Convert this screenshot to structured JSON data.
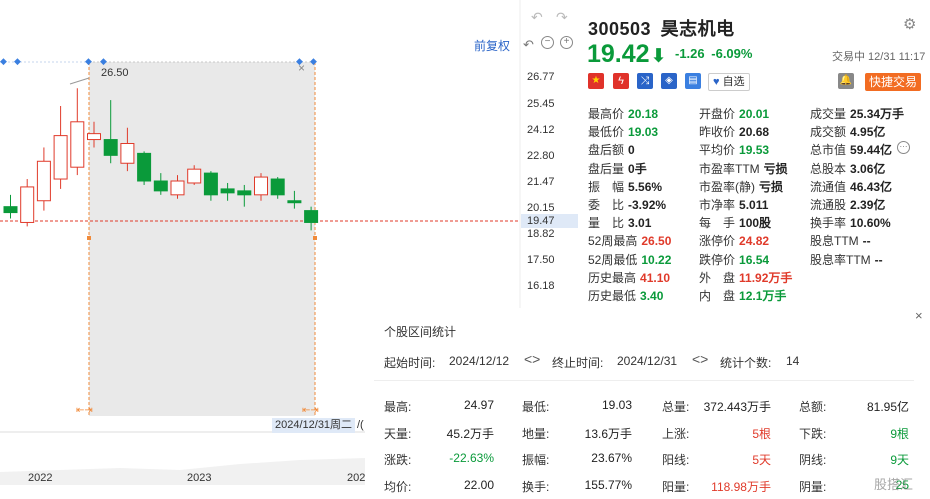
{
  "chart": {
    "y_ticks": [
      "26.77",
      "25.45",
      "24.12",
      "22.80",
      "21.47",
      "20.15",
      "18.82",
      "17.50",
      "16.18"
    ],
    "current_price_marker": "19.47",
    "peak_label": "26.50",
    "toolbar_label": "前复权",
    "date_tooltip": "2024/12/31周二",
    "date_tooltip_suffix": "/(",
    "timeline_years": [
      "2022",
      "2023",
      "202"
    ],
    "candles": [
      {
        "o": 20.2,
        "c": 19.9,
        "h": 20.8,
        "l": 19.6
      },
      {
        "o": 19.4,
        "c": 21.2,
        "h": 21.6,
        "l": 19.2
      },
      {
        "o": 20.5,
        "c": 22.5,
        "h": 23.2,
        "l": 20.0
      },
      {
        "o": 21.6,
        "c": 23.8,
        "h": 25.3,
        "l": 21.1
      },
      {
        "o": 22.2,
        "c": 24.5,
        "h": 26.2,
        "l": 21.8
      },
      {
        "o": 23.6,
        "c": 23.9,
        "h": 24.5,
        "l": 23.2
      },
      {
        "o": 23.6,
        "c": 22.8,
        "h": 25.6,
        "l": 22.4
      },
      {
        "o": 22.4,
        "c": 23.4,
        "h": 24.2,
        "l": 22.0
      },
      {
        "o": 22.9,
        "c": 21.5,
        "h": 23.0,
        "l": 21.3
      },
      {
        "o": 21.5,
        "c": 21.0,
        "h": 21.9,
        "l": 20.8
      },
      {
        "o": 20.8,
        "c": 21.5,
        "h": 21.8,
        "l": 20.6
      },
      {
        "o": 21.4,
        "c": 22.1,
        "h": 22.3,
        "l": 21.3
      },
      {
        "o": 21.9,
        "c": 20.8,
        "h": 22.0,
        "l": 20.5
      },
      {
        "o": 21.1,
        "c": 20.9,
        "h": 21.4,
        "l": 20.5
      },
      {
        "o": 21.0,
        "c": 20.8,
        "h": 21.3,
        "l": 20.2
      },
      {
        "o": 20.8,
        "c": 21.7,
        "h": 21.9,
        "l": 20.5
      },
      {
        "o": 21.6,
        "c": 20.8,
        "h": 21.7,
        "l": 20.6
      },
      {
        "o": 20.5,
        "c": 20.4,
        "h": 21.0,
        "l": 20.1
      },
      {
        "o": 20.0,
        "c": 19.4,
        "h": 20.2,
        "l": 19.0
      }
    ]
  },
  "header": {
    "code": "300503",
    "name": "昊志机电",
    "price": "19.42",
    "change": "-1.26",
    "change_pct": "-6.09%",
    "trade_time": "交易中 12/31 11:17",
    "watchlist_label": "自选",
    "trade_button": "快捷交易"
  },
  "quote": {
    "col1": [
      {
        "k": "最高价",
        "v": "20.18",
        "c": "green"
      },
      {
        "k": "最低价",
        "v": "19.03",
        "c": "green"
      },
      {
        "k": "盘后额",
        "v": "0",
        "c": "blk"
      },
      {
        "k": "盘后量",
        "v": "0手",
        "c": "blk"
      },
      {
        "k": "振　幅",
        "v": "5.56%",
        "c": "blk"
      },
      {
        "k": "委　比",
        "v": "-3.92%",
        "c": "blk"
      },
      {
        "k": "量　比",
        "v": "3.01",
        "c": "blk"
      },
      {
        "k": "52周最高",
        "v": "26.50",
        "c": "red"
      },
      {
        "k": "52周最低",
        "v": "10.22",
        "c": "green"
      },
      {
        "k": "历史最高",
        "v": "41.10",
        "c": "red"
      },
      {
        "k": "历史最低",
        "v": "3.40",
        "c": "green"
      }
    ],
    "col2": [
      {
        "k": "开盘价",
        "v": "20.01",
        "c": "green"
      },
      {
        "k": "昨收价",
        "v": "20.68",
        "c": "blk"
      },
      {
        "k": "平均价",
        "v": "19.53",
        "c": "green"
      },
      {
        "k": "市盈率TTM",
        "v": "亏损",
        "c": "blk"
      },
      {
        "k": "市盈率(静)",
        "v": "亏损",
        "c": "blk"
      },
      {
        "k": "市净率",
        "v": "5.011",
        "c": "blk"
      },
      {
        "k": "每　手",
        "v": "100股",
        "c": "blk"
      },
      {
        "k": "涨停价",
        "v": "24.82",
        "c": "red"
      },
      {
        "k": "跌停价",
        "v": "16.54",
        "c": "green"
      },
      {
        "k": "外　盘",
        "v": "11.92万手",
        "c": "red"
      },
      {
        "k": "内　盘",
        "v": "12.1万手",
        "c": "green"
      }
    ],
    "col3": [
      {
        "k": "成交量",
        "v": "25.34万手",
        "c": "blk"
      },
      {
        "k": "成交额",
        "v": "4.95亿",
        "c": "blk"
      },
      {
        "k": "总市值",
        "v": "59.44亿",
        "c": "blk"
      },
      {
        "k": "总股本",
        "v": "3.06亿",
        "c": "blk"
      },
      {
        "k": "流通值",
        "v": "46.43亿",
        "c": "blk"
      },
      {
        "k": "流通股",
        "v": "2.39亿",
        "c": "blk"
      },
      {
        "k": "换手率",
        "v": "10.60%",
        "c": "blk"
      },
      {
        "k": "股息TTM",
        "v": "--",
        "c": "blk"
      },
      {
        "k": "股息率TTM",
        "v": "--",
        "c": "blk"
      }
    ]
  },
  "range_stats": {
    "title": "个股区间统计",
    "start_label": "起始时间:",
    "start_value": "2024/12/12",
    "end_label": "终止时间:",
    "end_value": "2024/12/31",
    "count_label": "统计个数:",
    "count_value": "14",
    "rows": [
      [
        {
          "k": "最高:",
          "v": "24.97",
          "c": "blk"
        },
        {
          "k": "最低:",
          "v": "19.03",
          "c": "blk"
        },
        {
          "k": "总量:",
          "v": "372.443万手",
          "c": "blk"
        },
        {
          "k": "总额:",
          "v": "81.95亿",
          "c": "blk"
        }
      ],
      [
        {
          "k": "天量:",
          "v": "45.2万手",
          "c": "blk"
        },
        {
          "k": "地量:",
          "v": "13.6万手",
          "c": "blk"
        },
        {
          "k": "上涨:",
          "v": "5根",
          "c": "red"
        },
        {
          "k": "下跌:",
          "v": "9根",
          "c": "green"
        }
      ],
      [
        {
          "k": "涨跌:",
          "v": "-22.63%",
          "c": "green"
        },
        {
          "k": "振幅:",
          "v": "23.67%",
          "c": "blk"
        },
        {
          "k": "阳线:",
          "v": "5天",
          "c": "red"
        },
        {
          "k": "阴线:",
          "v": "9天",
          "c": "green"
        }
      ],
      [
        {
          "k": "均价:",
          "v": "22.00",
          "c": "blk"
        },
        {
          "k": "换手:",
          "v": "155.77%",
          "c": "blk"
        },
        {
          "k": "阳量:",
          "v": "118.98万手",
          "c": "red"
        },
        {
          "k": "阴量:",
          "v": "25",
          "c": "green"
        }
      ]
    ],
    "watermark": "股搭汇"
  }
}
